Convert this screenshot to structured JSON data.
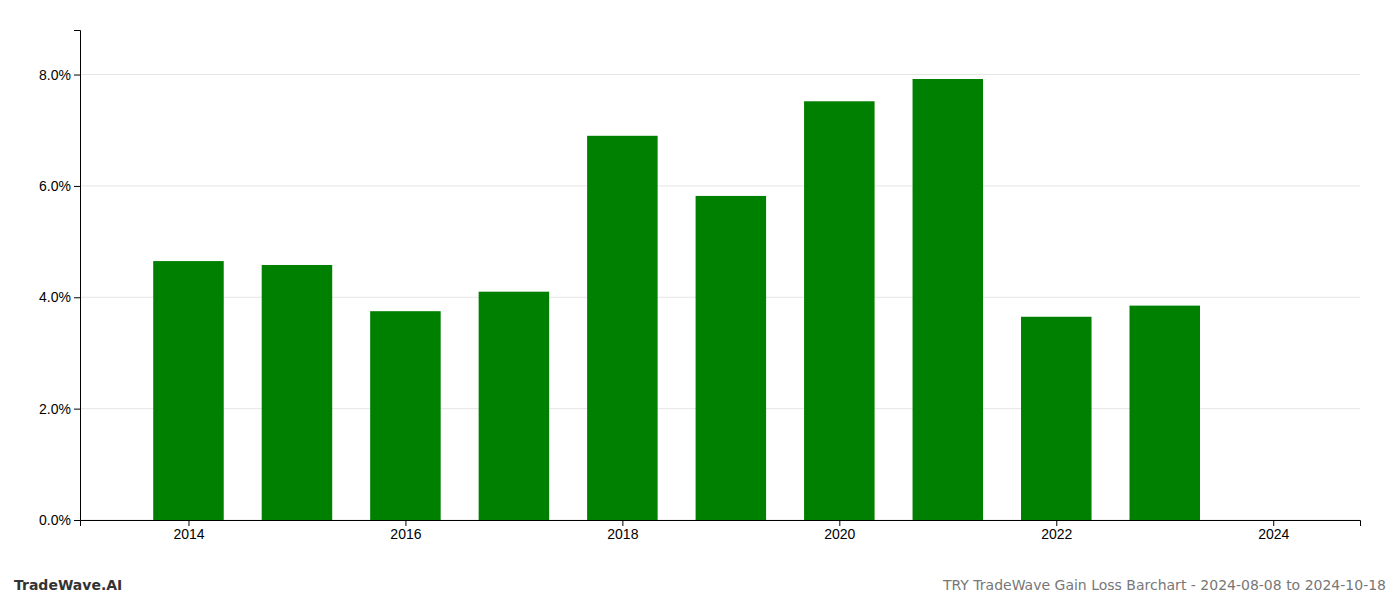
{
  "chart_data": {
    "type": "bar",
    "x": [
      2014,
      2015,
      2016,
      2017,
      2018,
      2019,
      2020,
      2021,
      2022,
      2023
    ],
    "values": [
      0.0465,
      0.0458,
      0.0375,
      0.041,
      0.069,
      0.0582,
      0.0752,
      0.0792,
      0.0365,
      0.0385
    ],
    "color": "#008000",
    "xlim": [
      2013.0,
      2024.8
    ],
    "xticks": [
      2014,
      2016,
      2018,
      2020,
      2022,
      2024
    ],
    "ylim": [
      0,
      0.088
    ],
    "yticks": [
      {
        "value": 0.0,
        "label": "0.0%"
      },
      {
        "value": 0.02,
        "label": "2.0%"
      },
      {
        "value": 0.04,
        "label": "4.0%"
      },
      {
        "value": 0.06,
        "label": "6.0%"
      },
      {
        "value": 0.08,
        "label": "8.0%"
      }
    ],
    "grid": true,
    "annotations": [
      "TradeWave.AI",
      "TRY TradeWave Gain Loss Barchart - 2024-08-08 to 2024-10-18"
    ]
  }
}
